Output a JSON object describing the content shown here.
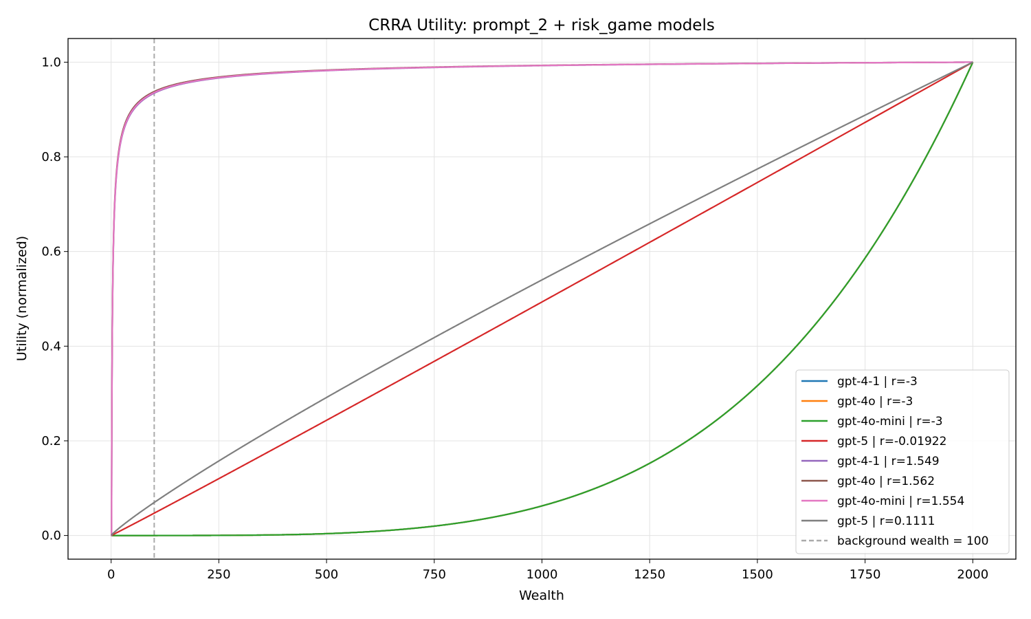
{
  "chart_data": {
    "type": "line",
    "title": "CRRA Utility: prompt_2 + risk_game models",
    "xlabel": "Wealth",
    "ylabel": "Utility (normalized)",
    "xlim": [
      -100,
      2100
    ],
    "ylim": [
      -0.05,
      1.05
    ],
    "xticks": [
      0,
      250,
      500,
      750,
      1000,
      1250,
      1500,
      1750,
      2000
    ],
    "xtick_labels": [
      "0",
      "250",
      "500",
      "750",
      "1000",
      "1250",
      "1500",
      "1750",
      "2000"
    ],
    "yticks": [
      0.0,
      0.2,
      0.4,
      0.6,
      0.8,
      1.0
    ],
    "ytick_labels": [
      "0.0",
      "0.2",
      "0.4",
      "0.6",
      "0.8",
      "1.0"
    ],
    "grid": true,
    "legend_position": "lower-right",
    "wealth_range": [
      0,
      2000
    ],
    "series": [
      {
        "name": "gpt-4-1 | r=-3",
        "r": -3,
        "color": "#1f77b4",
        "style": "solid"
      },
      {
        "name": "gpt-4o | r=-3",
        "r": -3,
        "color": "#ff7f0e",
        "style": "solid"
      },
      {
        "name": "gpt-4o-mini | r=-3",
        "r": -3,
        "color": "#2ca02c",
        "style": "solid"
      },
      {
        "name": "gpt-5 | r=-0.01922",
        "r": -0.01922,
        "color": "#d62728",
        "style": "solid"
      },
      {
        "name": "gpt-4-1 | r=1.549",
        "r": 1.549,
        "color": "#9467bd",
        "style": "solid"
      },
      {
        "name": "gpt-4o | r=1.562",
        "r": 1.562,
        "color": "#8c564b",
        "style": "solid"
      },
      {
        "name": "gpt-4o-mini | r=1.554",
        "r": 1.554,
        "color": "#e377c2",
        "style": "solid"
      },
      {
        "name": "gpt-5 | r=0.1111",
        "r": 0.1111,
        "color": "#7f7f7f",
        "style": "solid"
      }
    ],
    "reference_line": {
      "name": "background wealth = 100",
      "x": 100,
      "color": "#aaaaaa",
      "style": "dashed"
    }
  }
}
